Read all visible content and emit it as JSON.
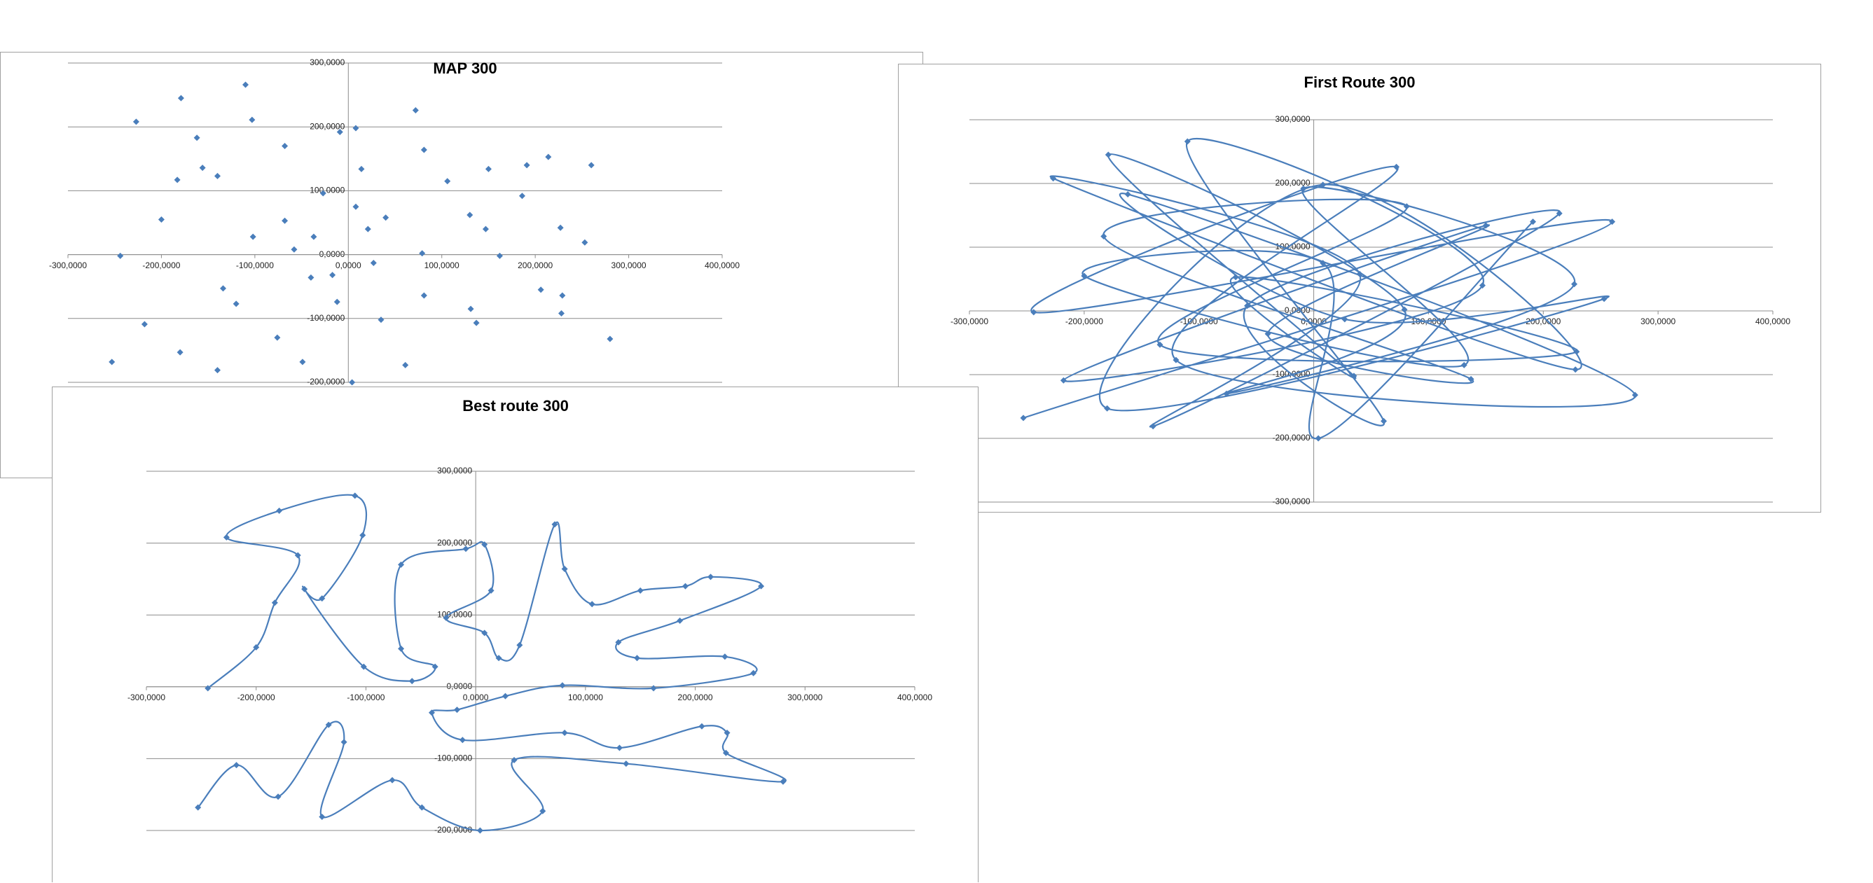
{
  "chart_data": [
    {
      "type": "scatter",
      "title": "MAP 300",
      "color": "#4a7ebb",
      "grid": true,
      "xlim": [
        -300000,
        400000
      ],
      "ylim": [
        -200000,
        300000
      ],
      "xticks": [
        {
          "value": -300000,
          "label": "-300,0000"
        },
        {
          "value": -200000,
          "label": "-200,0000"
        },
        {
          "value": -100000,
          "label": "-100,0000"
        },
        {
          "value": 0,
          "label": "0,0000"
        },
        {
          "value": 100000,
          "label": "100,0000"
        },
        {
          "value": 200000,
          "label": "200,0000"
        },
        {
          "value": 300000,
          "label": "300,0000"
        },
        {
          "value": 400000,
          "label": "400,0000"
        }
      ],
      "yticks": [
        {
          "value": -200000,
          "label": "-200,0000"
        },
        {
          "value": -100000,
          "label": "-100,0000"
        },
        {
          "value": 0,
          "label": "0,0000"
        },
        {
          "value": 100000,
          "label": "100,0000"
        },
        {
          "value": 200000,
          "label": "200,0000"
        },
        {
          "value": 300000,
          "label": "300,0000"
        }
      ],
      "x": [
        -253000,
        -227000,
        -179000,
        -110000,
        -103000,
        -162000,
        -156000,
        -183000,
        -140000,
        -200000,
        -244000,
        -218000,
        -180000,
        -140000,
        -68000,
        -68000,
        -49000,
        -9000,
        8000,
        72000,
        81000,
        4000,
        61000,
        106000,
        130000,
        150000,
        191000,
        214000,
        260000,
        227000,
        253000,
        186000,
        206000,
        229000,
        228000,
        280000,
        131000,
        137000,
        81000,
        35000,
        27000,
        -17000,
        -37000,
        -58000,
        -102000,
        -134000,
        -120000,
        -76000,
        8000,
        40000,
        14000,
        -27000,
        79000,
        162000,
        147000,
        -12000,
        21000,
        -40000
      ],
      "y": [
        -168000,
        208000,
        245000,
        266000,
        211000,
        183000,
        136000,
        117000,
        123000,
        55000,
        -2000,
        -109000,
        -153000,
        -181000,
        170000,
        53000,
        -168000,
        192000,
        198000,
        226000,
        164000,
        -200000,
        -173000,
        115000,
        62000,
        134000,
        140000,
        153000,
        140000,
        42000,
        19000,
        92000,
        -55000,
        -64000,
        -92000,
        -132000,
        -85000,
        -107000,
        -64000,
        -102000,
        -13000,
        -32000,
        28000,
        8000,
        28000,
        -53000,
        -77000,
        -130000,
        75000,
        58000,
        134000,
        96000,
        2000,
        -2000,
        40000,
        -74000,
        40000,
        -36000
      ]
    },
    {
      "type": "line",
      "title": "First Route 300",
      "color": "#4a7ebb",
      "grid": true,
      "smooth": true,
      "xlim": [
        -300000,
        400000
      ],
      "ylim": [
        -300000,
        300000
      ],
      "xticks": [
        {
          "value": -300000,
          "label": "-300,0000"
        },
        {
          "value": -200000,
          "label": "-200,0000"
        },
        {
          "value": -100000,
          "label": "-100,0000"
        },
        {
          "value": 0,
          "label": "0,0000"
        },
        {
          "value": 100000,
          "label": "100,0000"
        },
        {
          "value": 200000,
          "label": "200,0000"
        },
        {
          "value": 300000,
          "label": "300,0000"
        },
        {
          "value": 400000,
          "label": "400,0000"
        }
      ],
      "yticks": [
        {
          "value": -300000,
          "label": "-300,0000"
        },
        {
          "value": -200000,
          "label": "-200,0000"
        },
        {
          "value": -100000,
          "label": "-100,0000"
        },
        {
          "value": 0,
          "label": "0,0000"
        },
        {
          "value": 100000,
          "label": "100,0000"
        },
        {
          "value": 200000,
          "label": "200,0000"
        },
        {
          "value": 300000,
          "label": "300,0000"
        }
      ],
      "x": [
        -253000,
        260000,
        -244000,
        72000,
        -120000,
        280000,
        -162000,
        27000,
        253000,
        -180000,
        8000,
        228000,
        -227000,
        40000,
        -140000,
        214000,
        -58000,
        61000,
        -110000,
        147000,
        -218000,
        150000,
        -40000,
        137000,
        -183000,
        81000,
        -134000,
        229000,
        -68000,
        35000,
        -179000,
        79000,
        -76000,
        227000,
        -9000,
        131000,
        -200000,
        8000,
        4000,
        191000
      ],
      "y": [
        -168000,
        140000,
        -2000,
        226000,
        -77000,
        -132000,
        183000,
        -13000,
        19000,
        -153000,
        198000,
        -92000,
        208000,
        58000,
        -181000,
        153000,
        8000,
        -173000,
        266000,
        40000,
        -109000,
        134000,
        -36000,
        -107000,
        117000,
        164000,
        -53000,
        -64000,
        53000,
        -102000,
        245000,
        2000,
        -130000,
        42000,
        192000,
        -85000,
        55000,
        75000,
        -200000,
        140000
      ]
    },
    {
      "type": "line",
      "title": "Best route 300",
      "color": "#4a7ebb",
      "grid": true,
      "smooth": true,
      "xlim": [
        -300000,
        400000
      ],
      "ylim": [
        -200000,
        300000
      ],
      "xticks": [
        {
          "value": -300000,
          "label": "-300,0000"
        },
        {
          "value": -200000,
          "label": "-200,0000"
        },
        {
          "value": -100000,
          "label": "-100,0000"
        },
        {
          "value": 0,
          "label": "0,0000"
        },
        {
          "value": 100000,
          "label": "100,0000"
        },
        {
          "value": 200000,
          "label": "200,0000"
        },
        {
          "value": 300000,
          "label": "300,0000"
        },
        {
          "value": 400000,
          "label": "400,0000"
        }
      ],
      "yticks": [
        {
          "value": -200000,
          "label": "-200,0000"
        },
        {
          "value": -100000,
          "label": "-100,0000"
        },
        {
          "value": 0,
          "label": "0,0000"
        },
        {
          "value": 100000,
          "label": "100,0000"
        },
        {
          "value": 200000,
          "label": "200,0000"
        },
        {
          "value": 300000,
          "label": "300,0000"
        }
      ],
      "x": [
        -244000,
        -200000,
        -183000,
        -162000,
        -227000,
        -179000,
        -110000,
        -103000,
        -140000,
        -156000,
        -102000,
        -58000,
        -37000,
        -68000,
        -68000,
        -9000,
        8000,
        14000,
        -27000,
        8000,
        21000,
        40000,
        72000,
        81000,
        106000,
        150000,
        191000,
        214000,
        260000,
        186000,
        130000,
        147000,
        227000,
        253000,
        162000,
        79000,
        27000,
        -17000,
        -40000,
        -12000,
        81000,
        131000,
        206000,
        229000,
        228000,
        280000,
        137000,
        35000,
        61000,
        4000,
        -49000,
        -76000,
        -140000,
        -120000,
        -134000,
        -180000,
        -218000,
        -253000
      ],
      "y": [
        -2000,
        55000,
        117000,
        183000,
        208000,
        245000,
        266000,
        211000,
        123000,
        136000,
        28000,
        8000,
        28000,
        53000,
        170000,
        192000,
        198000,
        134000,
        96000,
        75000,
        40000,
        58000,
        226000,
        164000,
        115000,
        134000,
        140000,
        153000,
        140000,
        92000,
        62000,
        40000,
        42000,
        19000,
        -2000,
        2000,
        -13000,
        -32000,
        -36000,
        -74000,
        -64000,
        -85000,
        -55000,
        -64000,
        -92000,
        -132000,
        -107000,
        -102000,
        -173000,
        -200000,
        -168000,
        -130000,
        -181000,
        -77000,
        -53000,
        -153000,
        -109000,
        -168000
      ]
    }
  ]
}
